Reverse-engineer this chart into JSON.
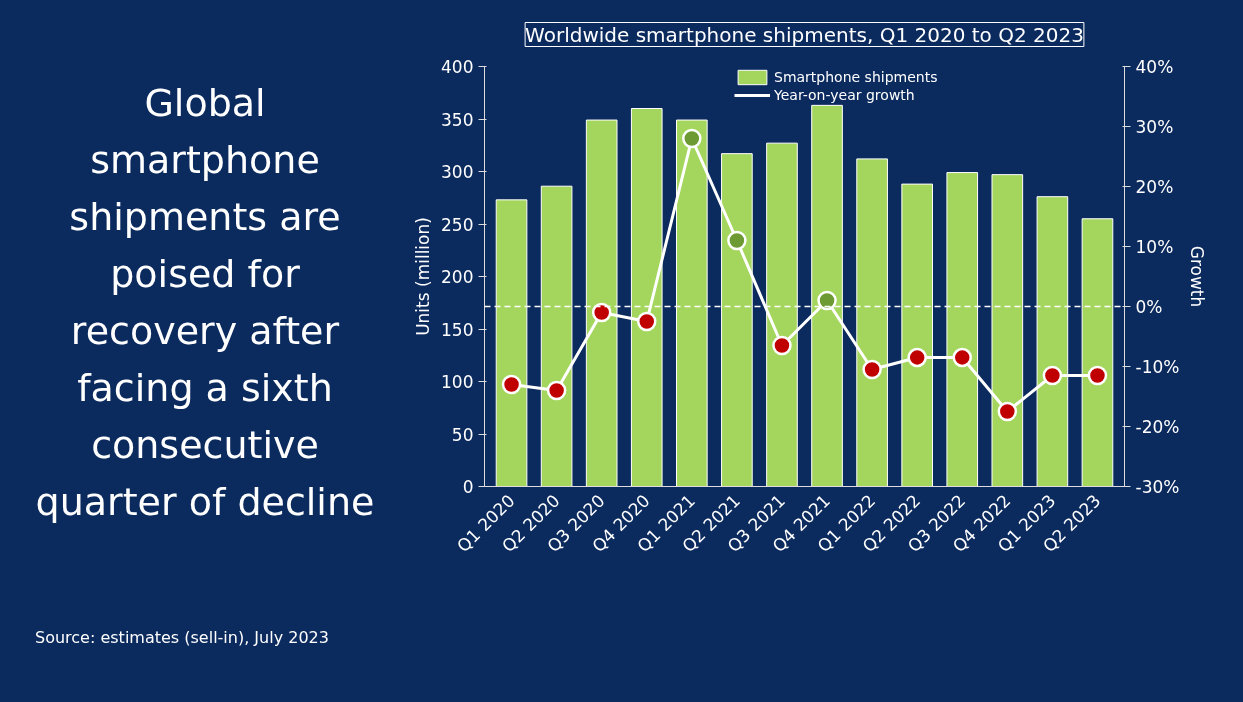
{
  "chart_data": {
    "type": "bar",
    "title": "Worldwide smartphone shipments, Q1 2020 to Q2 2023",
    "categories": [
      "Q1 2020",
      "Q2 2020",
      "Q3 2020",
      "Q4 2020",
      "Q1 2021",
      "Q2 2021",
      "Q3 2021",
      "Q4 2021",
      "Q1 2022",
      "Q2 2022",
      "Q3 2022",
      "Q4 2022",
      "Q1 2023",
      "Q2 2023"
    ],
    "series": [
      {
        "name": "Smartphone shipments",
        "type": "bar",
        "color": "#a4d65e",
        "values": [
          273,
          286,
          349,
          360,
          349,
          317,
          327,
          363,
          312,
          288,
          299,
          297,
          276,
          255
        ]
      },
      {
        "name": "Year-on-year growth",
        "type": "line",
        "axis": "y2",
        "color": "#ffffff",
        "marker": "circle",
        "colors": [
          "#c00000",
          "#c00000",
          "#c00000",
          "#c00000",
          "#6e9a34",
          "#6e9a34",
          "#c00000",
          "#6e9a34",
          "#c00000",
          "#c00000",
          "#c00000",
          "#c00000",
          "#c00000",
          "#c00000"
        ],
        "values": [
          -13,
          -14,
          -1,
          -2.5,
          28,
          11,
          -6.5,
          1,
          -10.5,
          -8.5,
          -8.5,
          -17.5,
          -11.5,
          -11.5
        ]
      }
    ],
    "ylabel": "Units (million)",
    "y2label": "Growth",
    "ylim": [
      0,
      400
    ],
    "yticks": [
      0,
      50,
      100,
      150,
      200,
      250,
      300,
      350,
      400
    ],
    "y2lim": [
      -30,
      40
    ],
    "y2ticks": [
      {
        "value": -30,
        "label": "-30%"
      },
      {
        "value": -20,
        "label": "-20%"
      },
      {
        "value": -10,
        "label": "-10%"
      },
      {
        "value": 0,
        "label": "0%"
      },
      {
        "value": 10,
        "label": "10%"
      },
      {
        "value": 20,
        "label": "20%"
      },
      {
        "value": 30,
        "label": "30%"
      },
      {
        "value": 40,
        "label": "40%"
      }
    ],
    "ref_lines": [
      {
        "axis": "y2",
        "value": 0,
        "color": "#ffffff",
        "line_style": "dashed"
      }
    ],
    "grid": false,
    "legend": "top",
    "annotations": [
      "Global smartphone shipments are poised for recovery after facing a sixth consecutive quarter of decline",
      "Source: estimates (sell-in), July 2023"
    ]
  }
}
